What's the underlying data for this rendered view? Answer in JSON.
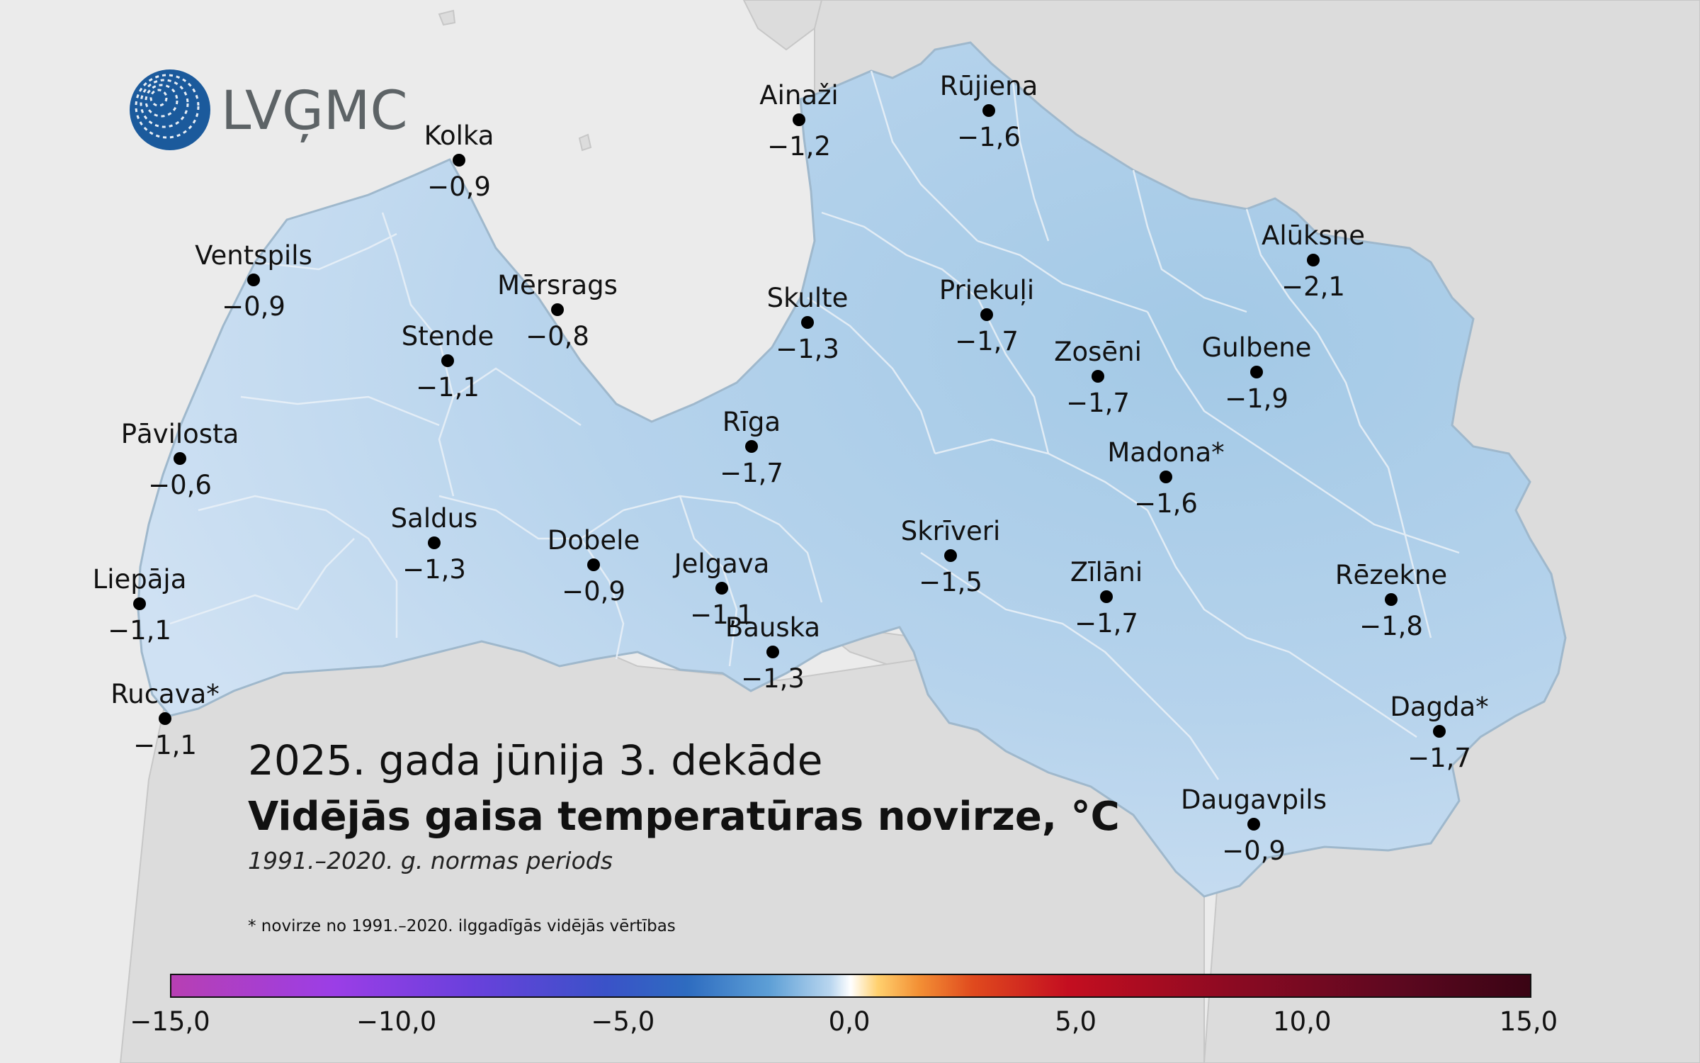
{
  "logo": {
    "text": "LVĢMC"
  },
  "title": {
    "period": "2025. gada jūnija 3. dekāde",
    "main": "Vidējās gaisa temperatūras novirze, °C",
    "sub": "1991.–2020. g. normas periods"
  },
  "footnote": "* novirze no 1991.–2020. ilggadīgās vidējās vērtības",
  "colors": {
    "sea": "#ebebeb",
    "land_outside": "#dddddd",
    "latvia_fill": "#b8d4ec",
    "border": "#ffffff",
    "marker": "#000000"
  },
  "stations": [
    {
      "name": "Kolka",
      "value": "−0,9"
    },
    {
      "name": "Ainaži",
      "value": "−1,2"
    },
    {
      "name": "Rūjiena",
      "value": "−1,6"
    },
    {
      "name": "Ventspils",
      "value": "−0,9"
    },
    {
      "name": "Mērsrags",
      "value": "−0,8"
    },
    {
      "name": "Stende",
      "value": "−1,1"
    },
    {
      "name": "Skulte",
      "value": "−1,3"
    },
    {
      "name": "Priekuļi",
      "value": "−1,7"
    },
    {
      "name": "Alūksne",
      "value": "−2,1"
    },
    {
      "name": "Zosēni",
      "value": "−1,7"
    },
    {
      "name": "Gulbene",
      "value": "−1,9"
    },
    {
      "name": "Pāvilosta",
      "value": "−0,6"
    },
    {
      "name": "Rīga",
      "value": "−1,7"
    },
    {
      "name": "Madona*",
      "value": "−1,6"
    },
    {
      "name": "Saldus",
      "value": "−1,3"
    },
    {
      "name": "Dobele",
      "value": "−0,9"
    },
    {
      "name": "Skrīveri",
      "value": "−1,5"
    },
    {
      "name": "Jelgava",
      "value": "−1,1"
    },
    {
      "name": "Zīlāni",
      "value": "−1,7"
    },
    {
      "name": "Rēzekne",
      "value": "−1,8"
    },
    {
      "name": "Liepāja",
      "value": "−1,1"
    },
    {
      "name": "Bauska",
      "value": "−1,3"
    },
    {
      "name": "Rucava*",
      "value": "−1,1"
    },
    {
      "name": "Dagda*",
      "value": "−1,7"
    },
    {
      "name": "Daugavpils",
      "value": "−0,9"
    }
  ],
  "legend": {
    "min": -15,
    "max": 15,
    "ticks": [
      "−15,0",
      "−10,0",
      "−5,0",
      "0,0",
      "5,0",
      "10,0",
      "15,0"
    ]
  }
}
